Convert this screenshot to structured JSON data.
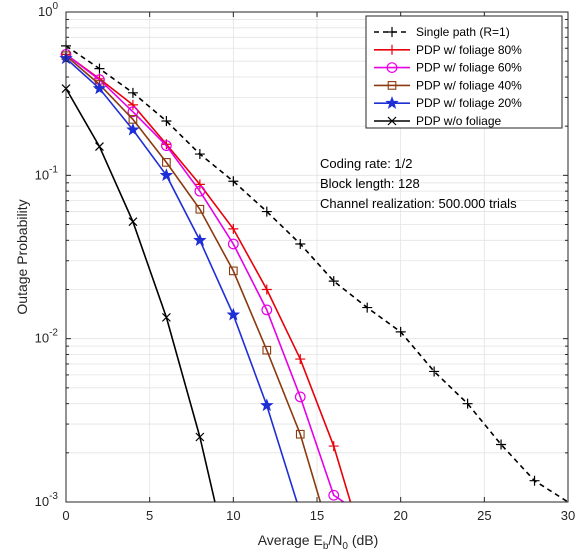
{
  "chart_data": {
    "type": "line",
    "xlabel_parts": {
      "main": "Average E",
      "sub1": "b",
      "slash": "/N",
      "sub2": "0",
      "unit": " (dB)"
    },
    "ylabel": "Outage Probability",
    "xlim": [
      0,
      30
    ],
    "ylim": [
      0.001,
      1
    ],
    "yscale": "log",
    "grid": true,
    "legend_position": "top-right",
    "xticks": [
      0,
      5,
      10,
      15,
      20,
      25,
      30
    ],
    "xtick_labels": [
      "0",
      "5",
      "10",
      "15",
      "20",
      "25",
      "30"
    ],
    "yticks": [
      {
        "value": 1,
        "base": "10",
        "exp": "0"
      },
      {
        "value": 0.1,
        "base": "10",
        "exp": "-1"
      },
      {
        "value": 0.01,
        "base": "10",
        "exp": "-2"
      },
      {
        "value": 0.001,
        "base": "10",
        "exp": "-3"
      }
    ],
    "annotations": [
      "Coding rate: 1/2",
      "Block length: 128",
      "Channel realization: 500.000 trials"
    ],
    "series": [
      {
        "name": "Single path (R=1)",
        "color": "#000000",
        "dash": true,
        "marker": "plus",
        "x": [
          0,
          2,
          4,
          6,
          8,
          10,
          12,
          14,
          16,
          18,
          20,
          22,
          24,
          26,
          28,
          30
        ],
        "y": [
          0.62,
          0.45,
          0.32,
          0.215,
          0.135,
          0.092,
          0.06,
          0.038,
          0.0225,
          0.0155,
          0.011,
          0.0063,
          0.004,
          0.00225,
          0.00135,
          0.00095
        ]
      },
      {
        "name": "PDP w/ foliage 80%",
        "color": "#e8000b",
        "dash": false,
        "marker": "plus",
        "x": [
          0,
          2,
          4,
          6,
          8,
          10,
          12,
          14,
          16,
          17
        ],
        "y": [
          0.55,
          0.39,
          0.27,
          0.155,
          0.088,
          0.047,
          0.02,
          0.0075,
          0.0022,
          0.00095
        ]
      },
      {
        "name": "PDP w/ foliage 60%",
        "color": "#e600e6",
        "dash": false,
        "marker": "circle",
        "x": [
          0,
          2,
          4,
          6,
          8,
          10,
          12,
          14,
          16,
          16.6
        ],
        "y": [
          0.55,
          0.385,
          0.245,
          0.152,
          0.08,
          0.038,
          0.015,
          0.0044,
          0.0011,
          0.00095
        ]
      },
      {
        "name": "PDP w/ foliage 40%",
        "color": "#8b3a0f",
        "dash": false,
        "marker": "square",
        "x": [
          0,
          2,
          4,
          6,
          8,
          10,
          12,
          14,
          15.2
        ],
        "y": [
          0.54,
          0.36,
          0.22,
          0.12,
          0.062,
          0.026,
          0.0085,
          0.0026,
          0.00095
        ]
      },
      {
        "name": "PDP w/ foliage 20%",
        "color": "#1f2fd6",
        "dash": false,
        "marker": "star",
        "x": [
          0,
          2,
          4,
          6,
          8,
          10,
          12,
          13.8
        ],
        "y": [
          0.52,
          0.34,
          0.19,
          0.1,
          0.04,
          0.014,
          0.0039,
          0.00095
        ]
      },
      {
        "name": "PDP w/o foliage",
        "color": "#000000",
        "dash": false,
        "marker": "x",
        "x": [
          0,
          2,
          4,
          6,
          8,
          8.9
        ],
        "y": [
          0.34,
          0.15,
          0.052,
          0.0135,
          0.0025,
          0.00095
        ]
      }
    ]
  }
}
